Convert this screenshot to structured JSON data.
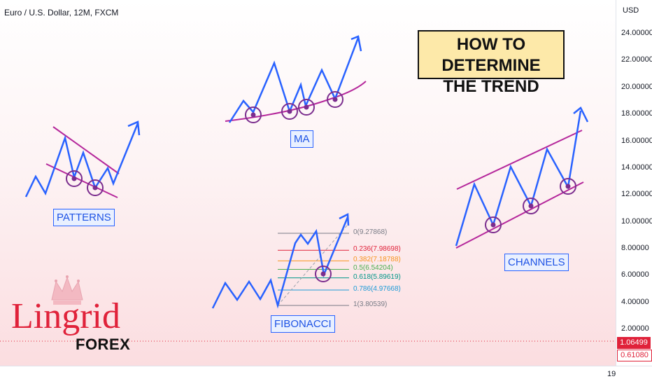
{
  "header": {
    "symbol": "Euro / U.S. Dollar, 12M, FXCM"
  },
  "headline": {
    "line1": "HOW TO DETERMINE",
    "line2": "THE TREND"
  },
  "labels": {
    "patterns": "PATTERNS",
    "ma": "MA",
    "fibonacci": "FIBONACCI",
    "channels": "CHANNELS"
  },
  "logo": {
    "brand": "Lingrid",
    "sub": "FOREX"
  },
  "colors": {
    "line": "#2962ff",
    "trend": "#b5279b",
    "circle": "#7b2d8e",
    "badge": "#e0223a"
  },
  "chart_data": {
    "type": "line",
    "axis_unit": "USD",
    "y_ticks": [
      "24.00000",
      "22.00000",
      "20.00000",
      "18.00000",
      "16.00000",
      "14.00000",
      "12.00000",
      "10.00000",
      "8.00000",
      "6.00000",
      "4.00000",
      "2.00000"
    ],
    "ylim": [
      -0.7,
      26.5
    ],
    "x_tick": "19",
    "current_price": "1.06499",
    "secondary_price": "0.61080",
    "fibonacci_levels": [
      {
        "label": "0(9.27868)",
        "value": 9.27868,
        "color": "#787b86"
      },
      {
        "label": "0.236(7.98698)",
        "value": 7.98698,
        "color": "#e0223a"
      },
      {
        "label": "0.382(7.18788)",
        "value": 7.18788,
        "color": "#f7931e"
      },
      {
        "label": "0.5(6.54204)",
        "value": 6.54204,
        "color": "#4caf50"
      },
      {
        "label": "0.618(5.89619)",
        "value": 5.89619,
        "color": "#009688"
      },
      {
        "label": "0.786(4.97668)",
        "value": 4.97668,
        "color": "#1e9bd7"
      },
      {
        "label": "1(3.80539)",
        "value": 3.80539,
        "color": "#787b86"
      }
    ]
  }
}
